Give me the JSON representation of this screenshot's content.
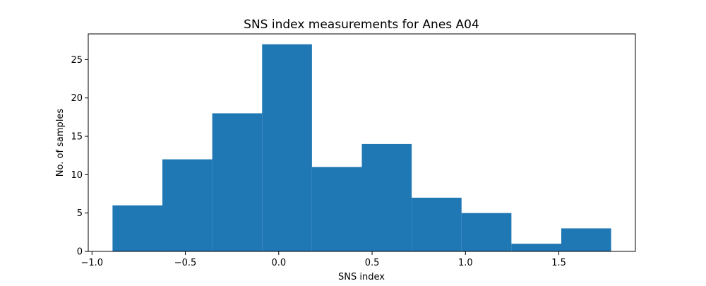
{
  "chart_data": {
    "type": "bar",
    "title": "SNS index measurements for Anes A04",
    "xlabel": "SNS index",
    "ylabel": "No. of samples",
    "bin_edges": [
      -0.89,
      -0.623,
      -0.356,
      -0.089,
      0.178,
      0.445,
      0.712,
      0.979,
      1.246,
      1.513,
      1.78
    ],
    "values": [
      6,
      12,
      18,
      27,
      11,
      14,
      7,
      5,
      1,
      3
    ],
    "xlim": [
      -1.02,
      1.91
    ],
    "ylim": [
      0,
      28.35
    ],
    "x_ticks": [
      -1.0,
      -0.5,
      0.0,
      0.5,
      1.0,
      1.5
    ],
    "x_tick_labels": [
      "−1.0",
      "−0.5",
      "0.0",
      "0.5",
      "1.0",
      "1.5"
    ],
    "y_ticks": [
      0,
      5,
      10,
      15,
      20,
      25
    ],
    "y_tick_labels": [
      "0",
      "5",
      "10",
      "15",
      "20",
      "25"
    ],
    "bar_color": "#1f77b4",
    "grid": false,
    "legend": "none"
  }
}
